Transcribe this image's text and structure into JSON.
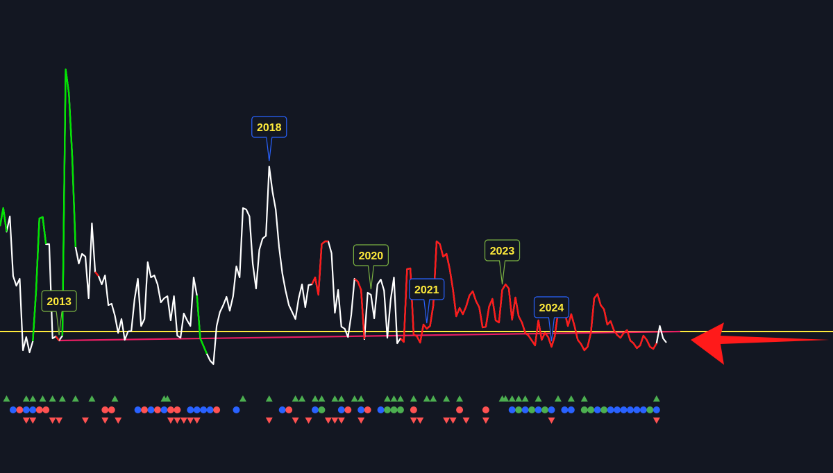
{
  "chart_data": {
    "type": "line",
    "title": "",
    "xlabel": "",
    "ylabel": "",
    "colors": {
      "background": "#131722",
      "line_normal": "#ffffff",
      "line_bull": "#00e600",
      "line_bear": "#ff1a1a",
      "trendline": "#e91e63",
      "baseline": "#ffeb3b",
      "arrow": "#ff1a1a",
      "callout_green": "#7cb342",
      "callout_blue": "#2962ff",
      "callout_text": "#ffeb3b",
      "marker_up": "#4caf50",
      "marker_down": "#ff5252",
      "dot_blue": "#2962ff",
      "dot_red": "#ff5252",
      "dot_green": "#4caf50"
    },
    "callouts": [
      {
        "label": "2013",
        "tip_index": 18,
        "box": "green"
      },
      {
        "label": "2018",
        "tip_index": 82,
        "box": "blue"
      },
      {
        "label": "2020",
        "tip_index": 113,
        "box": "green"
      },
      {
        "label": "2021",
        "tip_index": 130,
        "box": "blue"
      },
      {
        "label": "2023",
        "tip_index": 153,
        "box": "green"
      },
      {
        "label": "2024",
        "tip_index": 168,
        "box": "blue"
      }
    ],
    "series": [
      {
        "values": [
          326,
          300,
          334,
          312,
          398,
          412,
          402,
          505,
          486,
          508,
          492,
          419,
          315,
          313,
          352,
          352,
          488,
          485,
          491,
          484,
          100,
          135,
          225,
          356,
          380,
          366,
          370,
          430,
          322,
          392,
          398,
          410,
          397,
          440,
          438,
          455,
          480,
          460,
          490,
          478,
          477,
          431,
          402,
          470,
          460,
          378,
          400,
          397,
          410,
          436,
          430,
          427,
          462,
          427,
          484,
          487,
          452,
          462,
          470,
          400,
          426,
          488,
          499,
          510,
          520,
          525,
          470,
          450,
          440,
          428,
          448,
          427,
          384,
          400,
          300,
          302,
          312,
          380,
          416,
          360,
          344,
          340,
          240,
          276,
          302,
          356,
          394,
          419,
          440,
          450,
          460,
          430,
          410,
          443,
          411,
          410,
          400,
          425,
          352,
          348,
          348,
          365,
          451,
          418,
          471,
          474,
          486,
          454,
          402,
          406,
          418,
          489,
          422,
          425,
          459,
          410,
          403,
          419,
          487,
          432,
          400,
          495,
          488,
          493,
          388,
          387,
          482,
          485,
          494,
          468,
          474,
          470,
          440,
          348,
          352,
          370,
          366,
          388,
          418,
          456,
          444,
          453,
          442,
          426,
          420,
          434,
          443,
          472,
          471,
          442,
          431,
          462,
          465,
          418,
          410,
          416,
          461,
          429,
          456,
          465,
          480,
          484,
          491,
          498,
          462,
          490,
          480,
          486,
          500,
          485,
          450,
          448,
          450,
          470,
          453,
          470,
          490,
          496,
          505,
          500,
          480,
          430,
          424,
          440,
          446,
          468,
          463,
          476,
          483,
          487,
          480,
          476,
          491,
          495,
          502,
          498,
          484,
          490,
          500,
          503,
          495,
          470,
          488,
          494
        ]
      }
    ],
    "line_color_segments": [
      {
        "color": "bull",
        "from": 0,
        "to": 2
      },
      {
        "color": "bull",
        "from": 10,
        "to": 14
      },
      {
        "color": "bear",
        "from": 17,
        "to": 18
      },
      {
        "color": "bull",
        "from": 19,
        "to": 23
      },
      {
        "color": "bear",
        "from": 29,
        "to": 30
      },
      {
        "color": "bull",
        "from": 60,
        "to": 63
      },
      {
        "color": "bear",
        "from": 95,
        "to": 100
      },
      {
        "color": "bear",
        "from": 108,
        "to": 111
      },
      {
        "color": "bear",
        "from": 122,
        "to": 200
      }
    ],
    "trendline": {
      "from_index": 18,
      "to_value_at_end": 478
    },
    "baseline_value": 478,
    "markers": {
      "up_row": [
        2,
        8,
        10,
        13,
        16,
        19,
        23,
        28,
        35,
        50,
        51,
        74,
        82,
        90,
        92,
        96,
        98,
        102,
        104,
        108,
        110,
        118,
        120,
        122,
        126,
        130,
        132,
        136,
        140,
        153,
        154,
        156,
        158,
        160,
        164,
        170,
        174,
        178,
        200
      ],
      "dot_row": [
        {
          "i": 4,
          "c": "blue"
        },
        {
          "i": 6,
          "c": "red"
        },
        {
          "i": 8,
          "c": "blue"
        },
        {
          "i": 10,
          "c": "blue"
        },
        {
          "i": 12,
          "c": "red"
        },
        {
          "i": 14,
          "c": "red"
        },
        {
          "i": 32,
          "c": "red"
        },
        {
          "i": 34,
          "c": "red"
        },
        {
          "i": 42,
          "c": "blue"
        },
        {
          "i": 44,
          "c": "red"
        },
        {
          "i": 46,
          "c": "blue"
        },
        {
          "i": 48,
          "c": "red"
        },
        {
          "i": 50,
          "c": "blue"
        },
        {
          "i": 52,
          "c": "red"
        },
        {
          "i": 54,
          "c": "red"
        },
        {
          "i": 58,
          "c": "blue"
        },
        {
          "i": 60,
          "c": "blue"
        },
        {
          "i": 62,
          "c": "blue"
        },
        {
          "i": 64,
          "c": "blue"
        },
        {
          "i": 66,
          "c": "red"
        },
        {
          "i": 72,
          "c": "blue"
        },
        {
          "i": 86,
          "c": "blue"
        },
        {
          "i": 88,
          "c": "red"
        },
        {
          "i": 96,
          "c": "blue"
        },
        {
          "i": 98,
          "c": "green"
        },
        {
          "i": 104,
          "c": "blue"
        },
        {
          "i": 106,
          "c": "red"
        },
        {
          "i": 110,
          "c": "blue"
        },
        {
          "i": 112,
          "c": "red"
        },
        {
          "i": 116,
          "c": "blue"
        },
        {
          "i": 118,
          "c": "green"
        },
        {
          "i": 120,
          "c": "green"
        },
        {
          "i": 122,
          "c": "green"
        },
        {
          "i": 126,
          "c": "red"
        },
        {
          "i": 140,
          "c": "red"
        },
        {
          "i": 148,
          "c": "red"
        },
        {
          "i": 156,
          "c": "blue"
        },
        {
          "i": 158,
          "c": "green"
        },
        {
          "i": 160,
          "c": "blue"
        },
        {
          "i": 162,
          "c": "green"
        },
        {
          "i": 164,
          "c": "blue"
        },
        {
          "i": 166,
          "c": "green"
        },
        {
          "i": 168,
          "c": "blue"
        },
        {
          "i": 172,
          "c": "blue"
        },
        {
          "i": 174,
          "c": "blue"
        },
        {
          "i": 178,
          "c": "green"
        },
        {
          "i": 180,
          "c": "green"
        },
        {
          "i": 182,
          "c": "blue"
        },
        {
          "i": 184,
          "c": "green"
        },
        {
          "i": 186,
          "c": "blue"
        },
        {
          "i": 188,
          "c": "blue"
        },
        {
          "i": 190,
          "c": "blue"
        },
        {
          "i": 192,
          "c": "blue"
        },
        {
          "i": 194,
          "c": "blue"
        },
        {
          "i": 196,
          "c": "blue"
        },
        {
          "i": 198,
          "c": "green"
        },
        {
          "i": 200,
          "c": "blue"
        }
      ],
      "down_row": [
        8,
        10,
        16,
        18,
        26,
        32,
        36,
        52,
        54,
        56,
        58,
        60,
        82,
        90,
        94,
        100,
        102,
        104,
        110,
        126,
        128,
        136,
        138,
        142,
        148,
        168,
        200
      ]
    },
    "grid": false,
    "legend": "none"
  }
}
